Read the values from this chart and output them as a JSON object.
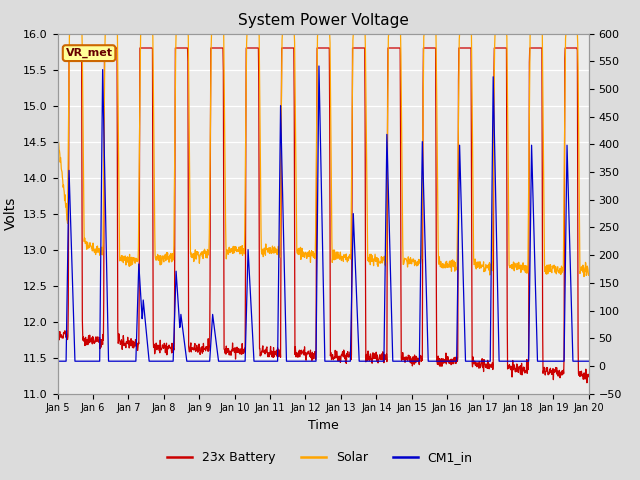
{
  "title": "System Power Voltage",
  "xlabel": "Time",
  "ylabel": "Volts",
  "ylim_left": [
    11.0,
    16.0
  ],
  "ylim_right": [
    -50,
    600
  ],
  "yticks_left": [
    11.0,
    11.5,
    12.0,
    12.5,
    13.0,
    13.5,
    14.0,
    14.5,
    15.0,
    15.5,
    16.0
  ],
  "yticks_right": [
    -50,
    0,
    50,
    100,
    150,
    200,
    250,
    300,
    350,
    400,
    450,
    500,
    550,
    600
  ],
  "xtick_labels": [
    "Jan 5",
    "Jan 6",
    "Jan 7",
    "Jan 8",
    "Jan 9",
    "Jan 10",
    "Jan 11",
    "Jan 12",
    "Jan 13",
    "Jan 14",
    "Jan 15",
    "Jan 16",
    "Jan 17",
    "Jan 18",
    "Jan 19",
    "Jan 20"
  ],
  "fig_bg": "#dcdcdc",
  "plot_bg": "#ebebeb",
  "grid_color": "#ffffff",
  "legend_labels": [
    "23x Battery",
    "Solar",
    "CM1_in"
  ],
  "legend_colors": [
    "#cc0000",
    "#ffa500",
    "#0000cc"
  ],
  "vr_met_label": "VR_met",
  "vr_met_fg": "#660000",
  "vr_met_bg": "#ffff99",
  "vr_met_border": "#cc6600"
}
